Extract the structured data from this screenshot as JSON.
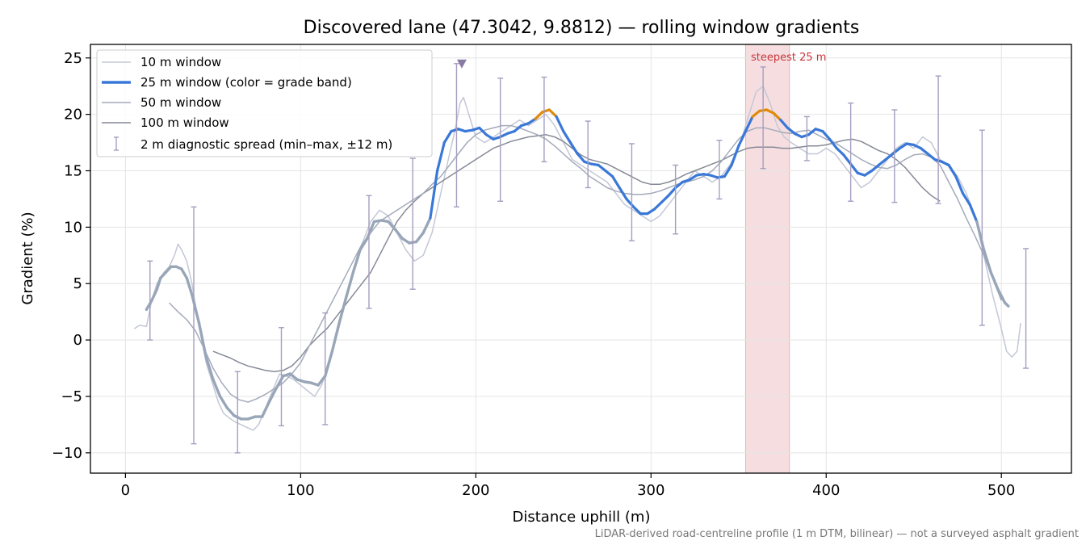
{
  "colors": {
    "w10": "#c3c8d6",
    "w25": "#3a78d8",
    "w25_steep": "#e08a0b",
    "w25_outer": "#98a6b8",
    "w50": "#a4aabb",
    "w100": "#868a96",
    "errbar": "#a59ec0",
    "marker": "#8a7ba6",
    "highlight": "#f3d3d6",
    "highlight_edge": "#e6b3b8"
  },
  "chart_data": {
    "type": "line",
    "title": "Discovered lane (47.3042, 9.8812) — rolling window gradients",
    "xlabel": "Distance uphill (m)",
    "ylabel": "Gradient (%)",
    "xlim": [
      -20,
      540
    ],
    "ylim": [
      -11.8,
      26.2
    ],
    "xticks": [
      0,
      100,
      200,
      300,
      400,
      500
    ],
    "yticks": [
      -10,
      -5,
      0,
      5,
      10,
      15,
      20,
      25
    ],
    "xtick_labels": [
      "0",
      "100",
      "200",
      "300",
      "400",
      "500"
    ],
    "ytick_labels": [
      "−10",
      "−5",
      "0",
      "5",
      "10",
      "15",
      "20",
      "25"
    ],
    "grid": true,
    "legend_position": "top-left",
    "footnote": "LiDAR-derived road-centreline profile (1 m DTM, bilinear) — not a surveyed asphalt gradient",
    "annotation": {
      "text": "steepest 25 m",
      "x_start": 354,
      "x_end": 379
    },
    "peak_marker": {
      "x": 192,
      "y": 24.5
    },
    "series": [
      {
        "name": "10 m window",
        "x": [
          5,
          8,
          12,
          15,
          18,
          20,
          22,
          25,
          28,
          30,
          32,
          35,
          38,
          40,
          43,
          46,
          50,
          53,
          56,
          60,
          63,
          66,
          70,
          73,
          76,
          80,
          84,
          88,
          92,
          96,
          100,
          104,
          108,
          112,
          116,
          120,
          125,
          130,
          135,
          140,
          145,
          150,
          155,
          160,
          165,
          170,
          175,
          180,
          185,
          188,
          191,
          193,
          195,
          198,
          200,
          205,
          210,
          215,
          220,
          225,
          230,
          235,
          240,
          245,
          250,
          255,
          260,
          265,
          270,
          275,
          280,
          285,
          290,
          295,
          300,
          305,
          310,
          315,
          320,
          325,
          330,
          335,
          340,
          345,
          350,
          355,
          360,
          364,
          368,
          372,
          376,
          380,
          385,
          390,
          395,
          400,
          405,
          410,
          415,
          420,
          425,
          430,
          435,
          440,
          445,
          450,
          455,
          460,
          465,
          470,
          475,
          480,
          485,
          490,
          495,
          500,
          503,
          506,
          509,
          511
        ],
        "y": [
          1.0,
          1.3,
          1.2,
          3.5,
          5.0,
          5.5,
          6.0,
          6.5,
          7.5,
          8.5,
          8.0,
          7.0,
          5.0,
          3.0,
          0.5,
          -2.0,
          -4.0,
          -5.5,
          -6.5,
          -7.0,
          -7.3,
          -7.5,
          -7.8,
          -8.0,
          -7.5,
          -6.0,
          -4.5,
          -3.0,
          -3.2,
          -3.5,
          -4.0,
          -4.5,
          -5.0,
          -4.0,
          -2.0,
          0.0,
          3.0,
          6.0,
          8.5,
          10.5,
          11.5,
          11.0,
          9.5,
          8.0,
          7.0,
          7.5,
          9.5,
          13.0,
          16.5,
          18.5,
          21.0,
          21.5,
          20.5,
          19.0,
          18.0,
          17.5,
          18.0,
          18.5,
          19.0,
          19.5,
          19.0,
          19.5,
          20.0,
          19.0,
          17.5,
          16.0,
          15.5,
          15.0,
          14.5,
          14.0,
          13.0,
          12.0,
          11.5,
          11.0,
          10.5,
          11.0,
          12.0,
          13.0,
          14.0,
          15.0,
          14.5,
          14.0,
          14.5,
          15.5,
          17.0,
          19.5,
          22.0,
          22.5,
          21.0,
          19.0,
          18.0,
          17.5,
          17.0,
          16.5,
          16.5,
          17.0,
          16.5,
          15.5,
          14.5,
          13.5,
          14.0,
          15.0,
          16.0,
          17.0,
          17.5,
          17.0,
          18.0,
          17.5,
          16.0,
          15.5,
          14.5,
          13.0,
          11.0,
          7.5,
          4.0,
          1.0,
          -1.0,
          -1.5,
          -1.0,
          1.5
        ]
      },
      {
        "name": "25 m window (color = grade band)",
        "x": [
          12,
          15,
          18,
          20,
          23,
          26,
          29,
          32,
          35,
          38,
          42,
          46,
          50,
          54,
          58,
          62,
          66,
          70,
          74,
          78,
          82,
          86,
          90,
          94,
          98,
          102,
          106,
          110,
          114,
          118,
          122,
          126,
          130,
          134,
          138,
          142,
          146,
          150,
          154,
          158,
          162,
          166,
          170,
          174,
          178,
          182,
          186,
          190,
          194,
          198,
          202,
          206,
          210,
          214,
          218,
          222,
          226,
          230,
          234,
          238,
          242,
          246,
          250,
          254,
          258,
          262,
          266,
          270,
          274,
          278,
          282,
          286,
          290,
          294,
          298,
          302,
          306,
          310,
          314,
          318,
          322,
          326,
          330,
          334,
          338,
          342,
          346,
          350,
          354,
          358,
          362,
          366,
          370,
          374,
          378,
          382,
          386,
          390,
          394,
          398,
          402,
          406,
          410,
          414,
          418,
          422,
          426,
          430,
          434,
          438,
          442,
          446,
          450,
          454,
          458,
          462,
          466,
          470,
          474,
          478,
          482,
          486,
          490,
          494,
          498,
          502,
          504
        ],
        "y": [
          2.7,
          3.5,
          4.5,
          5.5,
          6.0,
          6.5,
          6.5,
          6.3,
          5.5,
          4.0,
          1.5,
          -1.5,
          -3.5,
          -5.0,
          -6.0,
          -6.7,
          -7.0,
          -7.0,
          -6.8,
          -6.8,
          -5.5,
          -4.3,
          -3.2,
          -3.0,
          -3.5,
          -3.7,
          -3.8,
          -4.0,
          -3.2,
          -1.0,
          1.5,
          3.8,
          6.0,
          8.0,
          9.0,
          10.5,
          10.6,
          10.5,
          9.8,
          9.0,
          8.6,
          8.7,
          9.5,
          10.8,
          15.0,
          17.5,
          18.5,
          18.7,
          18.5,
          18.6,
          18.8,
          18.2,
          17.8,
          18.0,
          18.3,
          18.5,
          19.0,
          19.2,
          19.6,
          20.2,
          20.4,
          19.8,
          18.5,
          17.5,
          16.5,
          15.8,
          15.6,
          15.5,
          15.0,
          14.5,
          13.5,
          12.5,
          11.8,
          11.2,
          11.2,
          11.6,
          12.2,
          12.8,
          13.5,
          14.0,
          14.2,
          14.6,
          14.7,
          14.6,
          14.4,
          14.5,
          15.5,
          17.2,
          18.5,
          19.8,
          20.3,
          20.4,
          20.1,
          19.5,
          18.8,
          18.3,
          18.0,
          18.2,
          18.7,
          18.5,
          17.8,
          17.0,
          16.4,
          15.6,
          14.8,
          14.6,
          15.0,
          15.5,
          16.0,
          16.5,
          17.0,
          17.4,
          17.3,
          17.0,
          16.5,
          16.0,
          15.8,
          15.5,
          14.5,
          13.0,
          12.0,
          10.5,
          8.0,
          6.0,
          4.5,
          3.3,
          3.0
        ]
      },
      {
        "name": "50 m window",
        "x": [
          25,
          30,
          35,
          40,
          45,
          50,
          55,
          60,
          65,
          70,
          75,
          80,
          85,
          90,
          95,
          100,
          105,
          110,
          115,
          120,
          125,
          130,
          135,
          140,
          145,
          150,
          155,
          160,
          165,
          170,
          175,
          180,
          185,
          190,
          195,
          200,
          205,
          210,
          215,
          220,
          225,
          230,
          235,
          240,
          245,
          250,
          255,
          260,
          265,
          270,
          275,
          280,
          285,
          290,
          295,
          300,
          305,
          310,
          315,
          320,
          325,
          330,
          335,
          340,
          345,
          350,
          355,
          360,
          365,
          370,
          375,
          380,
          385,
          390,
          395,
          400,
          405,
          410,
          415,
          420,
          425,
          430,
          435,
          440,
          445,
          450,
          455,
          460,
          465,
          470,
          475,
          480,
          485,
          490,
          495,
          500
        ],
        "y": [
          3.3,
          2.5,
          1.8,
          0.8,
          -0.8,
          -2.5,
          -3.8,
          -4.8,
          -5.3,
          -5.5,
          -5.2,
          -4.8,
          -4.3,
          -3.8,
          -3.0,
          -2.0,
          -0.5,
          1.0,
          2.5,
          4.0,
          5.5,
          7.0,
          8.5,
          9.5,
          10.5,
          11.0,
          11.5,
          12.0,
          12.5,
          13.0,
          13.8,
          14.5,
          15.5,
          16.5,
          17.5,
          18.2,
          18.6,
          18.8,
          19.0,
          19.0,
          18.8,
          18.5,
          18.2,
          17.8,
          17.2,
          16.5,
          15.8,
          15.2,
          14.5,
          14.0,
          13.5,
          13.2,
          13.0,
          12.9,
          12.9,
          13.0,
          13.2,
          13.5,
          13.8,
          14.0,
          14.2,
          14.5,
          15.0,
          15.8,
          16.8,
          17.8,
          18.5,
          18.8,
          18.8,
          18.6,
          18.4,
          18.3,
          18.5,
          18.6,
          18.2,
          17.8,
          17.5,
          17.0,
          16.5,
          16.0,
          15.6,
          15.3,
          15.2,
          15.5,
          16.0,
          16.4,
          16.5,
          16.2,
          15.5,
          14.0,
          12.5,
          10.8,
          9.2,
          7.5,
          5.5,
          3.5
        ]
      },
      {
        "name": "100 m window",
        "x": [
          50,
          55,
          60,
          65,
          70,
          75,
          80,
          85,
          90,
          95,
          100,
          105,
          110,
          115,
          120,
          125,
          130,
          135,
          140,
          145,
          150,
          155,
          160,
          165,
          170,
          175,
          180,
          185,
          190,
          195,
          200,
          205,
          210,
          215,
          220,
          225,
          230,
          235,
          240,
          245,
          250,
          255,
          260,
          265,
          270,
          275,
          280,
          285,
          290,
          295,
          300,
          305,
          310,
          315,
          320,
          325,
          330,
          335,
          340,
          345,
          350,
          355,
          360,
          365,
          370,
          375,
          380,
          385,
          390,
          395,
          400,
          405,
          410,
          415,
          420,
          425,
          430,
          435,
          440,
          445,
          450,
          455,
          460,
          465
        ],
        "y": [
          -1.0,
          -1.3,
          -1.6,
          -2.0,
          -2.3,
          -2.5,
          -2.7,
          -2.8,
          -2.7,
          -2.3,
          -1.5,
          -0.5,
          0.3,
          1.0,
          2.0,
          3.0,
          4.0,
          5.0,
          6.0,
          7.5,
          9.0,
          10.5,
          11.5,
          12.3,
          13.0,
          13.5,
          14.0,
          14.5,
          15.0,
          15.5,
          16.0,
          16.5,
          17.0,
          17.3,
          17.6,
          17.8,
          18.0,
          18.1,
          18.2,
          18.0,
          17.6,
          17.0,
          16.4,
          16.0,
          15.8,
          15.6,
          15.2,
          14.8,
          14.4,
          14.0,
          13.8,
          13.8,
          14.0,
          14.3,
          14.7,
          15.0,
          15.3,
          15.6,
          15.9,
          16.3,
          16.7,
          17.0,
          17.1,
          17.1,
          17.1,
          17.0,
          17.0,
          17.1,
          17.2,
          17.2,
          17.3,
          17.5,
          17.7,
          17.8,
          17.6,
          17.2,
          16.8,
          16.5,
          16.0,
          15.3,
          14.4,
          13.5,
          12.8,
          12.3
        ]
      },
      {
        "name": "2 m diagnostic spread (min–max, ±12 m)",
        "x": [
          14,
          39,
          64,
          89,
          114,
          139,
          164,
          189,
          214,
          239,
          264,
          289,
          314,
          339,
          364,
          389,
          414,
          439,
          464,
          489,
          514
        ],
        "low": [
          0,
          -9.2,
          -10.0,
          -7.6,
          -7.5,
          2.8,
          4.5,
          11.8,
          12.3,
          15.8,
          13.5,
          8.8,
          9.4,
          12.5,
          15.2,
          15.9,
          12.3,
          12.2,
          12.1,
          1.3,
          -2.5
        ],
        "high": [
          7.0,
          11.8,
          -2.8,
          1.1,
          2.4,
          12.8,
          16.1,
          24.5,
          23.2,
          23.3,
          19.4,
          17.4,
          15.5,
          17.7,
          24.2,
          19.8,
          21.0,
          20.4,
          23.4,
          18.6,
          8.1
        ]
      }
    ]
  }
}
